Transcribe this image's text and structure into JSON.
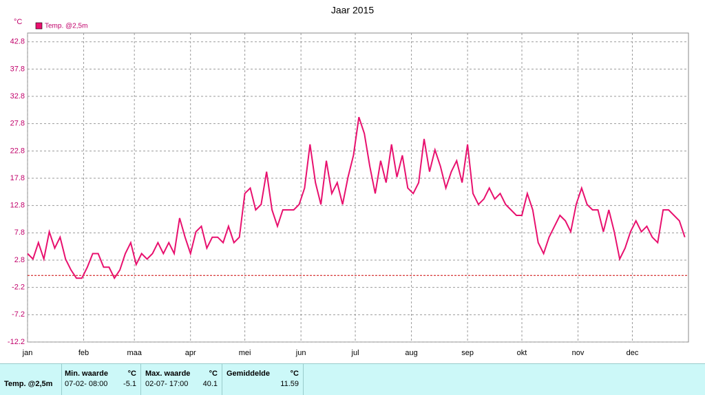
{
  "chart_data": {
    "type": "line",
    "title": "Jaar 2015",
    "y_unit": "°C",
    "x": [
      0,
      3,
      6,
      9,
      12,
      15,
      18,
      21,
      24,
      27,
      30,
      33,
      36,
      39,
      42,
      45,
      48,
      51,
      54,
      57,
      60,
      63,
      66,
      69,
      72,
      75,
      78,
      81,
      84,
      87,
      90,
      93,
      96,
      99,
      102,
      105,
      108,
      111,
      114,
      117,
      120,
      123,
      126,
      129,
      132,
      135,
      138,
      141,
      144,
      147,
      150,
      153,
      156,
      159,
      162,
      165,
      168,
      171,
      174,
      177,
      180,
      183,
      186,
      189,
      192,
      195,
      198,
      201,
      204,
      207,
      210,
      213,
      216,
      219,
      222,
      225,
      228,
      231,
      234,
      237,
      240,
      243,
      246,
      249,
      252,
      255,
      258,
      261,
      264,
      267,
      270,
      273,
      276,
      279,
      282,
      285,
      288,
      291,
      294,
      297,
      300,
      303,
      306,
      309,
      312,
      315,
      318,
      321,
      324,
      327,
      330,
      333,
      336,
      339,
      342,
      345,
      348,
      351,
      354,
      357,
      360,
      363
    ],
    "series": [
      {
        "name": "Temp. @2,5m",
        "color": "#e8106e",
        "values": [
          4,
          3,
          6,
          3,
          8,
          5,
          7,
          3,
          1,
          -0.5,
          -0.5,
          1.5,
          4,
          4,
          1.5,
          1.5,
          -0.5,
          1,
          4,
          6,
          2,
          4,
          3,
          4,
          6,
          4,
          6,
          4,
          10.5,
          7,
          4,
          8,
          9,
          5,
          7,
          7,
          6,
          9,
          6,
          7,
          15,
          16,
          12,
          13,
          19,
          12,
          9,
          12,
          12,
          12,
          13,
          16,
          24,
          17,
          13,
          21,
          15,
          17,
          13,
          18,
          22,
          29,
          26,
          20,
          15,
          21,
          17,
          24,
          18,
          22,
          16,
          15,
          17,
          25,
          19,
          23,
          20,
          16,
          19,
          21,
          17,
          24,
          15,
          13,
          14,
          16,
          14,
          15,
          13,
          12,
          11,
          11,
          15,
          12,
          6,
          4,
          7,
          9,
          11,
          10,
          8,
          13,
          16,
          13,
          12,
          12,
          8,
          12,
          8,
          3,
          5,
          8,
          10,
          8,
          9,
          7,
          6,
          12,
          12,
          11,
          10,
          7
        ]
      }
    ],
    "xlim": [
      0,
      365
    ],
    "xticks": [
      {
        "value": 0,
        "label": "jan"
      },
      {
        "value": 31,
        "label": "feb"
      },
      {
        "value": 59,
        "label": "maa"
      },
      {
        "value": 90,
        "label": "apr"
      },
      {
        "value": 120,
        "label": "mei"
      },
      {
        "value": 151,
        "label": "jun"
      },
      {
        "value": 181,
        "label": "jul"
      },
      {
        "value": 212,
        "label": "aug"
      },
      {
        "value": 243,
        "label": "sep"
      },
      {
        "value": 273,
        "label": "okt"
      },
      {
        "value": 304,
        "label": "nov"
      },
      {
        "value": 334,
        "label": "dec"
      }
    ],
    "ylim": [
      -12.2,
      44.4
    ],
    "yticks": [
      -12.2,
      -7.2,
      -2.2,
      2.8,
      7.8,
      12.8,
      17.8,
      22.8,
      27.8,
      32.8,
      37.8,
      42.8
    ],
    "zero_line": 0,
    "zero_line_color": "#cc0000",
    "grid": true,
    "legend": "top-left"
  },
  "footer": {
    "series_name": "Temp. @2,5m",
    "min": {
      "header": "Min. waarde",
      "unit": "°C",
      "time": "07-02- 08:00",
      "value": "-5.1"
    },
    "max": {
      "header": "Max. waarde",
      "unit": "°C",
      "time": "02-07- 17:00",
      "value": "40.1"
    },
    "avg": {
      "header": "Gemiddelde",
      "unit": "°C",
      "value": "11.59"
    }
  }
}
